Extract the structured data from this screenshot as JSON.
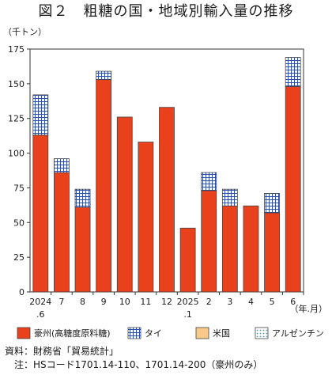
{
  "chart_data": {
    "type": "bar",
    "stacked": true,
    "title": "図２　粗糖の国・地域別輸入量の推移",
    "ylabel": "（千トン）",
    "xlabel": "（年.月）",
    "ylim": [
      0,
      175
    ],
    "yticks": [
      0,
      25,
      50,
      75,
      100,
      125,
      150,
      175
    ],
    "grid": false,
    "legend_position": "bottom",
    "categories": [
      {
        "main": "2024",
        "sub": ".6"
      },
      {
        "main": "7",
        "sub": ""
      },
      {
        "main": "8",
        "sub": ""
      },
      {
        "main": "9",
        "sub": ""
      },
      {
        "main": "10",
        "sub": ""
      },
      {
        "main": "11",
        "sub": ""
      },
      {
        "main": "12",
        "sub": ""
      },
      {
        "main": "2025",
        "sub": ".1"
      },
      {
        "main": "2",
        "sub": ""
      },
      {
        "main": "3",
        "sub": ""
      },
      {
        "main": "4",
        "sub": ""
      },
      {
        "main": "5",
        "sub": ""
      },
      {
        "main": "6",
        "sub": ""
      }
    ],
    "series": [
      {
        "name": "豪州(高糖度原料糖)",
        "color": "#e8411c",
        "pattern": "solid",
        "values": [
          113,
          86,
          61,
          153,
          126,
          108,
          133,
          46,
          73,
          62,
          62,
          57,
          148
        ]
      },
      {
        "name": "タイ",
        "color": "#3b58b8",
        "pattern": "grid",
        "values": [
          29,
          10,
          13,
          6,
          0,
          0,
          0,
          0,
          13,
          12,
          0,
          14,
          21
        ]
      },
      {
        "name": "米国",
        "color": "#f7c98a",
        "pattern": "solid",
        "values": [
          0,
          0,
          0,
          0,
          0,
          0,
          0,
          0,
          0,
          0,
          0,
          0,
          0
        ]
      },
      {
        "name": "アルゼンチン",
        "color": "#5fb3c6",
        "pattern": "dots",
        "values": [
          0,
          0,
          0,
          0,
          0,
          0,
          0,
          0,
          0,
          0,
          0,
          0,
          0
        ]
      }
    ]
  },
  "source": {
    "line1": "資料：財務省「貿易統計」",
    "line2": "　注：HSコード1701.14-110、1701.14-200（豪州のみ）"
  }
}
